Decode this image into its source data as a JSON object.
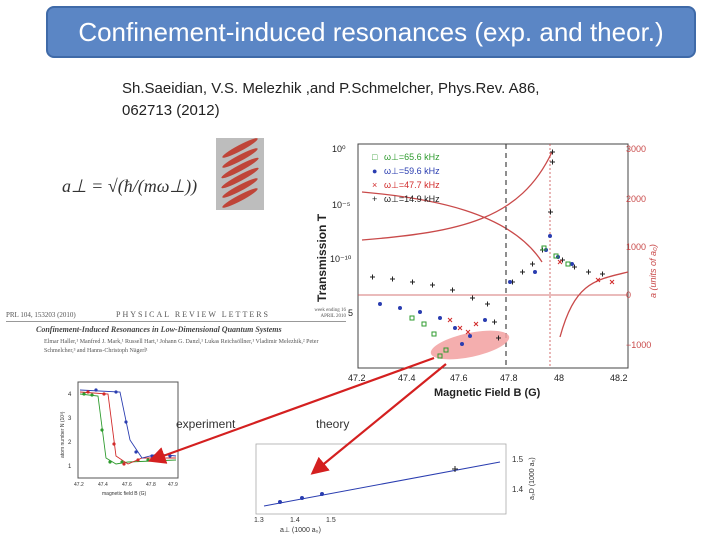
{
  "slide": {
    "title": "Confinement-induced resonances (exp. and theor.)",
    "citation": "Sh.Saeidian, V.S. Melezhik ,and P.Schmelcher, Phys.Rev. A86, 062713 (2012)",
    "formula": "a⊥ = √(ħ/(mω⊥))",
    "label_experiment": "experiment",
    "label_theory": "theory"
  },
  "paper": {
    "ref": "PRL 104, 153203 (2010)",
    "journal": "PHYSICAL REVIEW LETTERS",
    "received": "week ending 16 APRIL 2010",
    "title": "Confinement-Induced Resonances in Low-Dimensional Quantum Systems",
    "authors": "Elmar Haller,¹ Manfred J. Mark,¹ Russell Hart,¹ Johann G. Danzl,¹ Lukas Reichsöllner,¹ Vladimir Melezhik,² Peter Schmelcher,³ and Hanns-Christoph Nägerl¹"
  },
  "main_plot": {
    "ylabel_left": "Transmission T",
    "ylabel_right": "a (units of a₀)",
    "xlabel": "Magnetic Field B (G)",
    "x_ticks": [
      "47.2",
      "47.4",
      "47.6",
      "47.8",
      "48",
      "48.2"
    ],
    "y_ticks_left": [
      "10⁰",
      "10⁻⁵",
      "10⁻¹⁰",
      "5"
    ],
    "y_ticks_right": [
      "3000",
      "2000",
      "1000",
      "0",
      "−1000"
    ],
    "legend": [
      {
        "marker": "□",
        "label": "ω⊥=65.6 kHz",
        "color": "#2e9b2e"
      },
      {
        "marker": "●",
        "label": "ω⊥=59.6 kHz",
        "color": "#2a3db0"
      },
      {
        "marker": "×",
        "label": "ω⊥=47.7 kHz",
        "color": "#d12a2a"
      },
      {
        "marker": "+",
        "label": "ω⊥=14.9 kHz",
        "color": "#222222"
      }
    ]
  },
  "exp_plot": {
    "ylabel": "atom number N (10³)",
    "xlabel": "magnetic field B (G)",
    "x_ticks": [
      "47.2",
      "47.4",
      "47.6",
      "47.8",
      "47.9"
    ],
    "y_ticks": [
      "4",
      "3",
      "2",
      "1"
    ]
  },
  "inset_plot": {
    "ylabel": "a₃D (1000 a₀)",
    "xlabel": "a⊥ (1000 a₀)",
    "x_ticks": [
      "1.3",
      "1.4",
      "1.5"
    ],
    "y_ticks": [
      "1.5",
      "1.4"
    ]
  },
  "colors": {
    "title_bg": "#5b86c5",
    "arrow": "#d42020",
    "highlight": "#f2a0a0"
  }
}
